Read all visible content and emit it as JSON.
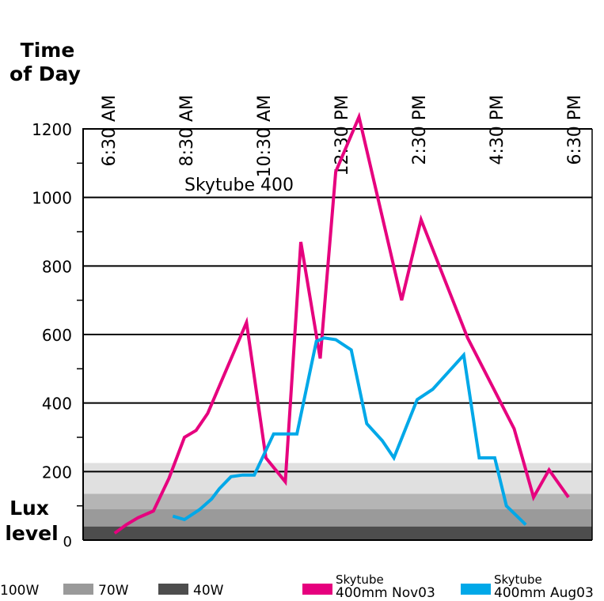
{
  "chart_data": {
    "type": "line",
    "title": "Skytube 400",
    "xlabel": "Time of Day",
    "ylabel": "Lux level",
    "x_ticks": [
      "6:30 AM",
      "8:30 AM",
      "10:30 AM",
      "12:30 PM",
      "2:30 PM",
      "4:30 PM",
      "6:30 PM"
    ],
    "y_ticks": [
      0,
      200,
      400,
      600,
      800,
      1000,
      1200
    ],
    "ylim": [
      0,
      1200
    ],
    "xlim_hours": [
      6.5,
      18.5
    ],
    "grid": true,
    "bands": [
      {
        "name": "40W",
        "from": 0,
        "to": 40,
        "color": "#4d4d4d"
      },
      {
        "name": "70W",
        "from": 40,
        "to": 90,
        "color": "#9a9a9a"
      },
      {
        "name": "",
        "from": 90,
        "to": 135,
        "color": "#b5b5b5"
      },
      {
        "name": "100W",
        "from": 135,
        "to": 225,
        "color": "#e0e0e0"
      }
    ],
    "series": [
      {
        "name": "Skytube 400mm Nov03",
        "color": "#e6007e",
        "points": [
          [
            6.7,
            20
          ],
          [
            7.0,
            45
          ],
          [
            7.3,
            65
          ],
          [
            7.5,
            75
          ],
          [
            7.7,
            85
          ],
          [
            8.1,
            180
          ],
          [
            8.5,
            300
          ],
          [
            8.8,
            320
          ],
          [
            9.1,
            370
          ],
          [
            10.1,
            635
          ],
          [
            10.6,
            240
          ],
          [
            11.1,
            170
          ],
          [
            11.5,
            870
          ],
          [
            12.0,
            530
          ],
          [
            12.4,
            1075
          ],
          [
            13.0,
            1235
          ],
          [
            14.1,
            700
          ],
          [
            14.6,
            935
          ],
          [
            15.8,
            590
          ],
          [
            17.0,
            325
          ],
          [
            17.5,
            125
          ],
          [
            17.9,
            205
          ],
          [
            18.4,
            125
          ]
        ]
      },
      {
        "name": "Skytube 400mm Aug03",
        "color": "#00a8e8",
        "points": [
          [
            8.2,
            70
          ],
          [
            8.5,
            60
          ],
          [
            8.9,
            90
          ],
          [
            9.2,
            120
          ],
          [
            9.4,
            150
          ],
          [
            9.7,
            185
          ],
          [
            10.0,
            190
          ],
          [
            10.3,
            190
          ],
          [
            10.8,
            310
          ],
          [
            11.1,
            310
          ],
          [
            11.4,
            310
          ],
          [
            11.9,
            580
          ],
          [
            12.1,
            590
          ],
          [
            12.4,
            585
          ],
          [
            12.8,
            555
          ],
          [
            13.2,
            340
          ],
          [
            13.6,
            290
          ],
          [
            13.9,
            240
          ],
          [
            14.5,
            410
          ],
          [
            14.9,
            440
          ],
          [
            15.3,
            490
          ],
          [
            15.7,
            540
          ],
          [
            16.1,
            240
          ],
          [
            16.5,
            240
          ],
          [
            16.8,
            100
          ],
          [
            17.3,
            45
          ]
        ]
      }
    ],
    "legend": {
      "band_items": [
        "100W",
        "70W",
        "40W"
      ],
      "series_items": [
        {
          "line1": "Skytube",
          "line2": "400mm Nov03"
        },
        {
          "line1": "Skytube",
          "line2": "400mm Aug03"
        }
      ]
    }
  }
}
